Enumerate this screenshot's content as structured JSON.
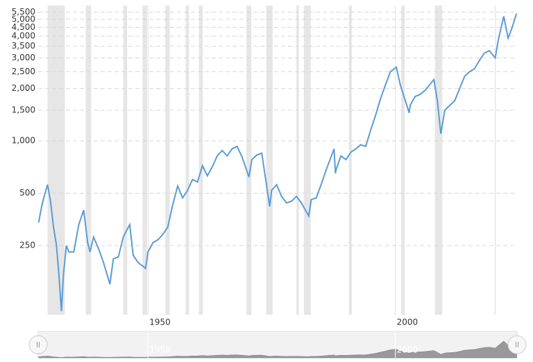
{
  "chart_data": {
    "type": "line",
    "log_y": true,
    "grid": true,
    "xlim": [
      1927.8,
      2024.6
    ],
    "xticks": [
      1950,
      2000
    ],
    "ylim": [
      100,
      6000
    ],
    "yticks": [
      250,
      500,
      {
        "value": 1000,
        "label": "1,000"
      },
      {
        "value": 1500,
        "label": "1,500"
      },
      {
        "value": 2000,
        "label": "2,000"
      },
      {
        "value": 2500,
        "label": "2,500"
      },
      {
        "value": 3000,
        "label": "3,000"
      },
      {
        "value": 3500,
        "label": "3,500"
      },
      {
        "value": 4000,
        "label": "4,000"
      },
      {
        "value": 4500,
        "label": "4,500"
      },
      {
        "value": 5000,
        "label": "5,000"
      },
      {
        "value": 5500,
        "label": "5,500"
      }
    ],
    "recessions": [
      [
        1929.7,
        1933.2
      ],
      [
        1937.4,
        1938.5
      ],
      [
        1945.0,
        1945.8
      ],
      [
        1948.9,
        1949.8
      ],
      [
        1953.5,
        1954.4
      ],
      [
        1957.6,
        1958.3
      ],
      [
        1960.3,
        1961.1
      ],
      [
        1969.9,
        1970.9
      ],
      [
        1973.9,
        1975.2
      ],
      [
        1980.0,
        1980.5
      ],
      [
        1981.5,
        1982.9
      ],
      [
        1990.6,
        1991.2
      ],
      [
        2001.2,
        2001.9
      ],
      [
        2008.0,
        2009.5
      ],
      [
        2020.1,
        2020.3
      ]
    ],
    "recession_color": "#e6e6e6",
    "x": [
      1927.9,
      1928.5,
      1929.0,
      1929.7,
      1930.3,
      1930.9,
      1931.5,
      1932.0,
      1932.5,
      1932.9,
      1933.5,
      1934,
      1935,
      1936,
      1937.0,
      1937.8,
      1938.3,
      1939,
      1940,
      1941,
      1942.3,
      1943,
      1944,
      1945,
      1946.3,
      1947,
      1948,
      1949.5,
      1950,
      1951,
      1952,
      1953,
      1954,
      1955,
      1956,
      1957,
      1958,
      1959,
      1960,
      1961,
      1962,
      1963,
      1964,
      1965,
      1966,
      1967,
      1968,
      1969,
      1970.4,
      1971,
      1972,
      1973,
      1974.6,
      1975,
      1976,
      1977,
      1978,
      1979,
      1980,
      1981,
      1982.5,
      1983,
      1984,
      1985,
      1986,
      1987.6,
      1987.9,
      1988,
      1989,
      1990,
      1991,
      1992,
      1993,
      1994,
      1995,
      1996,
      1997,
      1998,
      1999,
      2000.2,
      2001,
      2002.8,
      2003,
      2004,
      2005,
      2006,
      2007.8,
      2008.5,
      2009.2,
      2010,
      2011,
      2012,
      2013,
      2014,
      2015,
      2016,
      2017,
      2018,
      2019,
      2020.2,
      2020.8,
      2021.9,
      2022.8,
      2023.5,
      2024.5
    ],
    "series": [
      {
        "color": "#5b9bd5",
        "values": [
          340,
          420,
          480,
          560,
          450,
          320,
          250,
          170,
          105,
          170,
          250,
          230,
          230,
          330,
          400,
          260,
          230,
          280,
          240,
          200,
          150,
          210,
          215,
          280,
          330,
          220,
          200,
          185,
          230,
          260,
          270,
          290,
          320,
          430,
          550,
          470,
          520,
          600,
          580,
          720,
          630,
          710,
          820,
          880,
          820,
          900,
          930,
          810,
          620,
          780,
          830,
          850,
          420,
          520,
          560,
          480,
          440,
          450,
          480,
          440,
          370,
          460,
          470,
          560,
          680,
          900,
          650,
          680,
          820,
          780,
          860,
          900,
          950,
          930,
          1150,
          1400,
          1750,
          2100,
          2500,
          2650,
          2100,
          1450,
          1600,
          1800,
          1850,
          1950,
          2250,
          1700,
          1100,
          1500,
          1600,
          1700,
          2000,
          2350,
          2500,
          2600,
          2900,
          3200,
          3300,
          3000,
          3800,
          5200,
          3900,
          4400,
          5400
        ]
      }
    ]
  }
}
